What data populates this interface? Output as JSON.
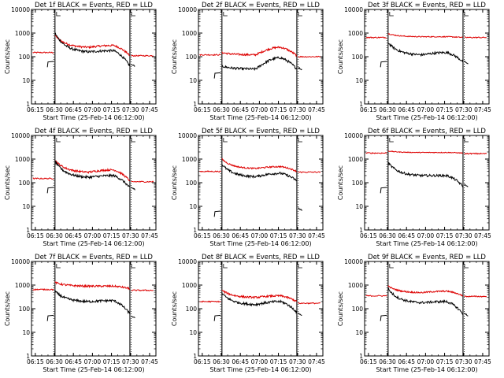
{
  "chart_data": {
    "type": "line",
    "layout": "3x3 grid",
    "x_axis": {
      "label": "Start Time (25-Feb-14 06:12:00)",
      "tick_labels": [
        "06:15",
        "06:30",
        "06:45",
        "07:00",
        "07:15",
        "07:30",
        "07:45"
      ],
      "tick_minutes": [
        15,
        30,
        45,
        60,
        75,
        90,
        105
      ],
      "range_minutes": [
        12,
        110
      ]
    },
    "y_axis": {
      "label": "Counts/sec",
      "scale": "log",
      "range": [
        1,
        10000
      ],
      "tick_labels": [
        "1",
        "10",
        "100",
        "1000",
        "10000"
      ],
      "tick_values": [
        1,
        10,
        100,
        1000,
        10000
      ]
    },
    "vertical_markers_minutes": [
      30.5,
      89.5
    ],
    "dotted_markers_minutes": [
      29.5,
      90.5
    ],
    "series_colors": {
      "events": "#000000",
      "lld": "#dd0000"
    },
    "panels": [
      {
        "title": "Det 1f  BLACK = Events, RED = LLD",
        "pre_events": 60,
        "pre_lld": 150,
        "lld": {
          "start": 800,
          "dip": 250,
          "bump": 300,
          "end": 110,
          "noise": 0.04
        },
        "events": {
          "start": 1000,
          "dip": 160,
          "bump": 180,
          "end": 40,
          "noise": 0.05
        },
        "post_events": 35,
        "post_lld": 110
      },
      {
        "title": "Det 2f  BLACK = Events, RED = LLD",
        "pre_events": 20,
        "pre_lld": 120,
        "lld": {
          "start": 150,
          "dip": 120,
          "bump": 250,
          "end": 110,
          "noise": 0.04
        },
        "events": {
          "start": 40,
          "dip": 30,
          "bump": 90,
          "end": 30,
          "noise": 0.05
        },
        "post_events": 25,
        "post_lld": 100
      },
      {
        "title": "Det 3f  BLACK = Events, RED = LLD",
        "pre_events": 60,
        "pre_lld": 650,
        "lld": {
          "start": 950,
          "dip": 700,
          "bump": 700,
          "end": 650,
          "noise": 0.02
        },
        "events": {
          "start": 400,
          "dip": 120,
          "bump": 150,
          "end": 60,
          "noise": 0.05
        },
        "post_events": 45,
        "post_lld": 650
      },
      {
        "title": "Det 4f  BLACK = Events, RED = LLD",
        "pre_events": 60,
        "pre_lld": 150,
        "lld": {
          "start": 900,
          "dip": 280,
          "bump": 350,
          "end": 120,
          "noise": 0.04
        },
        "events": {
          "start": 800,
          "dip": 170,
          "bump": 200,
          "end": 60,
          "noise": 0.05
        },
        "post_events": 45,
        "post_lld": 110
      },
      {
        "title": "Det 5f  BLACK = Events, RED = LLD",
        "pre_events": 6,
        "pre_lld": 300,
        "lld": {
          "start": 1000,
          "dip": 400,
          "bump": 480,
          "end": 300,
          "noise": 0.03
        },
        "events": {
          "start": 600,
          "dip": 180,
          "bump": 250,
          "end": 120,
          "noise": 0.05
        },
        "post_events": 6,
        "post_lld": 280
      },
      {
        "title": "Det 6f  BLACK = Events, RED = LLD",
        "pre_events": 60,
        "pre_lld": 1800,
        "lld": {
          "start": 2200,
          "dip": 1900,
          "bump": 1900,
          "end": 1800,
          "noise": 0.015
        },
        "events": {
          "start": 700,
          "dip": 200,
          "bump": 200,
          "end": 70,
          "noise": 0.05
        },
        "post_events": 60,
        "post_lld": 1700
      },
      {
        "title": "Det 7f  BLACK = Events, RED = LLD",
        "pre_events": 50,
        "pre_lld": 650,
        "lld": {
          "start": 1300,
          "dip": 900,
          "bump": 900,
          "end": 700,
          "noise": 0.04
        },
        "events": {
          "start": 550,
          "dip": 200,
          "bump": 220,
          "end": 60,
          "noise": 0.05
        },
        "post_events": 35,
        "post_lld": 600
      },
      {
        "title": "Det 8f  BLACK = Events, RED = LLD",
        "pre_events": 50,
        "pre_lld": 200,
        "lld": {
          "start": 600,
          "dip": 300,
          "bump": 350,
          "end": 200,
          "noise": 0.04
        },
        "events": {
          "start": 450,
          "dip": 150,
          "bump": 200,
          "end": 70,
          "noise": 0.05
        },
        "post_events": 45,
        "post_lld": 170
      },
      {
        "title": "Det 9f  BLACK = Events, RED = LLD",
        "pre_events": 50,
        "pre_lld": 350,
        "lld": {
          "start": 900,
          "dip": 480,
          "bump": 550,
          "end": 350,
          "noise": 0.03
        },
        "events": {
          "start": 700,
          "dip": 180,
          "bump": 200,
          "end": 60,
          "noise": 0.05
        },
        "post_events": 45,
        "post_lld": 330
      }
    ]
  }
}
